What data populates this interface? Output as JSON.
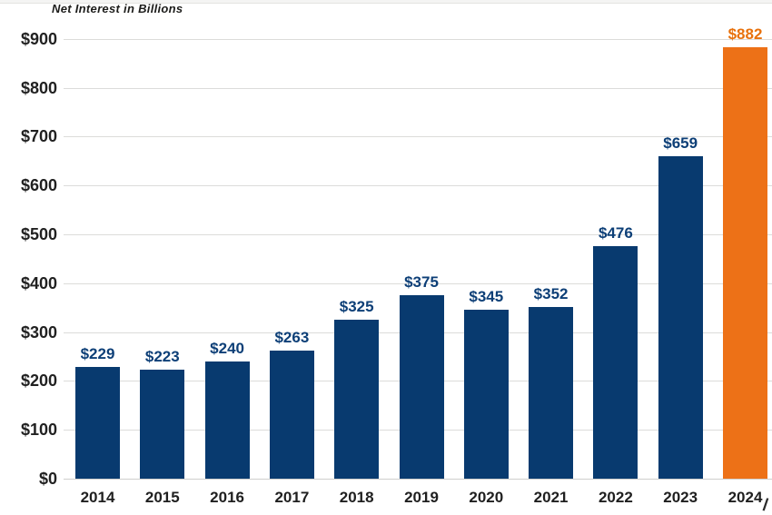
{
  "title": "Net Interest in Billions",
  "chart_data": {
    "type": "bar",
    "title": "Net Interest in Billions",
    "categories": [
      "2014",
      "2015",
      "2016",
      "2017",
      "2018",
      "2019",
      "2020",
      "2021",
      "2022",
      "2023",
      "2024"
    ],
    "values": [
      229,
      223,
      240,
      263,
      325,
      375,
      345,
      352,
      476,
      659,
      882
    ],
    "bar_labels": [
      "$229",
      "$223",
      "$240",
      "$263",
      "$325",
      "$375",
      "$345",
      "$352",
      "$476",
      "$659",
      "$882"
    ],
    "ytick_labels": [
      "$0",
      "$100",
      "$200",
      "$300",
      "$400",
      "$500",
      "$600",
      "$700",
      "$800",
      "$900"
    ],
    "ylim": [
      0,
      900
    ],
    "ytick_step": 100,
    "xlabel": "",
    "ylabel": "",
    "grid": true,
    "legend": "none",
    "highlight_index": 10,
    "colors": {
      "bar": "#083a6f",
      "highlight_bar": "#ed7117",
      "value_label": "#0d3f77",
      "highlight_value_label": "#e8710c",
      "gridline": "#dcdcda",
      "axis_text": "#212121"
    }
  },
  "decoration": {
    "corner_slash": "/"
  }
}
